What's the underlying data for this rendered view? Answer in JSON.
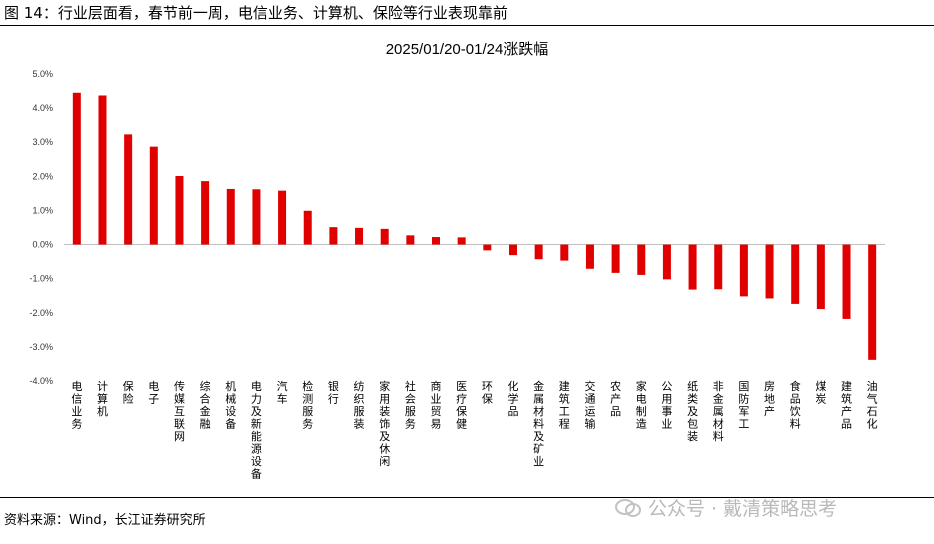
{
  "figure_title": "图 14：行业层面看，春节前一周，电信业务、计算机、保险等行业表现靠前",
  "source": "资料来源：Wind，长江证券研究所",
  "watermark": "公众号 · 戴清策略思考",
  "colors": {
    "bar": "#e00000",
    "axis": "#bfbfbf",
    "text": "#000000"
  },
  "chart_data": {
    "type": "bar",
    "title": "2025/01/20-01/24涨跌幅",
    "xlabel": "",
    "ylabel": "",
    "ylim": [
      -4.0,
      5.0
    ],
    "yticks": [
      "5.0%",
      "4.0%",
      "3.0%",
      "2.0%",
      "1.0%",
      "0.0%",
      "-1.0%",
      "-2.0%",
      "-3.0%",
      "-4.0%"
    ],
    "ytick_values": [
      5,
      4,
      3,
      2,
      1,
      0,
      -1,
      -2,
      -3,
      -4
    ],
    "grid": false,
    "legend": "none",
    "categories": [
      "电信业务",
      "计算机",
      "保险",
      "电子",
      "传媒互联网",
      "综合金融",
      "机械设备",
      "电力及新能源设备",
      "汽车",
      "检测服务",
      "银行",
      "纺织服装",
      "家用装饰及休闲",
      "社会服务",
      "商业贸易",
      "医疗保健",
      "环保",
      "化学品",
      "金属材料及矿业",
      "建筑工程",
      "交通运输",
      "农产品",
      "家电制造",
      "公用事业",
      "纸类及包装",
      "非金属材料",
      "国防军工",
      "房地产",
      "食品饮料",
      "煤炭",
      "建筑产品",
      "油气石化"
    ],
    "values": [
      4.45,
      4.37,
      3.23,
      2.87,
      2.01,
      1.86,
      1.63,
      1.62,
      1.58,
      0.99,
      0.51,
      0.49,
      0.46,
      0.27,
      0.22,
      0.21,
      -0.17,
      -0.31,
      -0.43,
      -0.47,
      -0.71,
      -0.83,
      -0.89,
      -1.02,
      -1.32,
      -1.31,
      -1.52,
      -1.58,
      -1.74,
      -1.89,
      -2.18,
      -3.38
    ]
  }
}
